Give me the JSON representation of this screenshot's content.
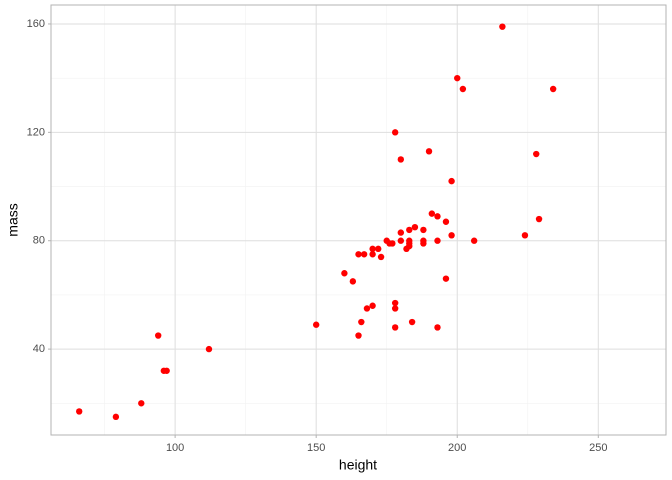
{
  "chart_data": {
    "type": "scatter",
    "x_label": "height",
    "y_label": "mass",
    "x": [
      66,
      79,
      88,
      94,
      96,
      97,
      112,
      150,
      160,
      163,
      165,
      165,
      166,
      167,
      168,
      170,
      170,
      170,
      172,
      173,
      175,
      176,
      177,
      178,
      178,
      178,
      178,
      180,
      180,
      180,
      182,
      183,
      183,
      183,
      183,
      184,
      185,
      188,
      188,
      188,
      190,
      191,
      193,
      193,
      193,
      196,
      196,
      198,
      198,
      200,
      202,
      206,
      216,
      224,
      228,
      229,
      234
    ],
    "values": [
      17,
      15,
      20,
      45,
      32,
      32,
      40,
      49,
      68,
      65,
      75,
      45,
      50,
      75,
      55,
      77,
      75,
      56,
      77,
      74,
      80,
      79,
      79,
      57,
      55,
      48,
      120,
      110,
      83,
      80,
      77,
      79,
      78,
      80,
      84,
      50,
      85,
      84,
      80,
      79,
      113,
      90,
      89,
      80,
      48,
      66,
      87,
      102,
      82,
      140,
      136,
      80,
      159,
      82,
      112,
      88,
      136
    ],
    "color": "#ff0000",
    "xlim": [
      56,
      274
    ],
    "ylim": [
      8.3,
      167
    ],
    "xticks": [
      100,
      150,
      200,
      250
    ],
    "yticks": [
      40,
      80,
      120,
      160
    ],
    "grid": true
  }
}
